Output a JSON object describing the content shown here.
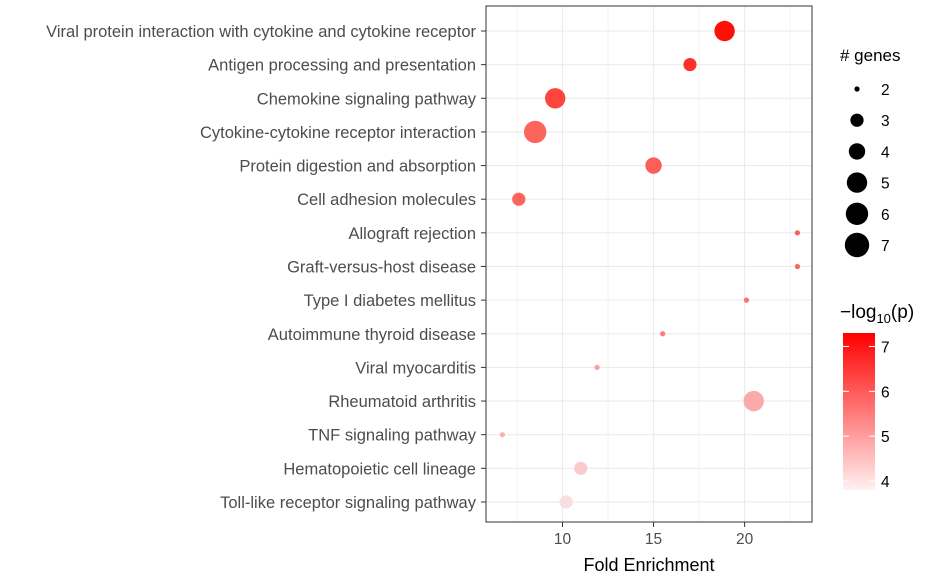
{
  "chart_data": {
    "type": "scatter",
    "title": "",
    "xlabel": "Fold Enrichment",
    "ylabel": "",
    "xlim": [
      5.8,
      23.7
    ],
    "x_ticks": [
      10,
      15,
      20
    ],
    "grid": true,
    "categories": [
      "Viral protein interaction with cytokine and cytokine receptor",
      "Antigen processing and presentation",
      "Chemokine signaling pathway",
      "Cytokine-cytokine receptor interaction",
      "Protein digestion and absorption",
      "Cell adhesion molecules",
      "Allograft rejection",
      "Graft-versus-host disease",
      "Type I diabetes mellitus",
      "Autoimmune thyroid disease",
      "Viral myocarditis",
      "Rheumatoid arthritis",
      "TNF signaling pathway",
      "Hematopoietic cell lineage",
      "Toll-like receptor signaling pathway"
    ],
    "points": [
      {
        "pathway": "Viral protein interaction with cytokine and cytokine receptor",
        "fold_enrichment": 18.9,
        "genes": 5,
        "neg_log10_p": 7.2
      },
      {
        "pathway": "Antigen processing and presentation",
        "fold_enrichment": 17.0,
        "genes": 3,
        "neg_log10_p": 6.7
      },
      {
        "pathway": "Chemokine signaling pathway",
        "fold_enrichment": 9.6,
        "genes": 5,
        "neg_log10_p": 6.4
      },
      {
        "pathway": "Cytokine-cytokine receptor interaction",
        "fold_enrichment": 8.5,
        "genes": 6,
        "neg_log10_p": 5.9
      },
      {
        "pathway": "Protein digestion and absorption",
        "fold_enrichment": 15.0,
        "genes": 4,
        "neg_log10_p": 6.0
      },
      {
        "pathway": "Cell adhesion molecules",
        "fold_enrichment": 7.6,
        "genes": 3,
        "neg_log10_p": 5.9
      },
      {
        "pathway": "Allograft rejection",
        "fold_enrichment": 22.9,
        "genes": 2,
        "neg_log10_p": 6.0
      },
      {
        "pathway": "Graft-versus-host disease",
        "fold_enrichment": 22.9,
        "genes": 2,
        "neg_log10_p": 5.9
      },
      {
        "pathway": "Type I diabetes mellitus",
        "fold_enrichment": 20.1,
        "genes": 2,
        "neg_log10_p": 5.7
      },
      {
        "pathway": "Autoimmune thyroid disease",
        "fold_enrichment": 15.5,
        "genes": 2,
        "neg_log10_p": 5.5
      },
      {
        "pathway": "Viral myocarditis",
        "fold_enrichment": 11.9,
        "genes": 2,
        "neg_log10_p": 5.0
      },
      {
        "pathway": "Rheumatoid arthritis",
        "fold_enrichment": 20.5,
        "genes": 5,
        "neg_log10_p": 4.8
      },
      {
        "pathway": "TNF signaling pathway",
        "fold_enrichment": 6.7,
        "genes": 2,
        "neg_log10_p": 4.7
      },
      {
        "pathway": "Hematopoietic cell lineage",
        "fold_enrichment": 11.0,
        "genes": 3,
        "neg_log10_p": 4.3
      },
      {
        "pathway": "Toll-like receptor signaling pathway",
        "fold_enrichment": 10.2,
        "genes": 3,
        "neg_log10_p": 4.0
      }
    ],
    "size_legend": {
      "title": "# genes",
      "values": [
        2,
        3,
        4,
        5,
        6,
        7
      ]
    },
    "color_legend": {
      "title_prefix": "−log",
      "title_subscript": "10",
      "title_suffix": "(p)",
      "range": [
        3.8,
        7.3
      ],
      "ticks": [
        4,
        5,
        6,
        7
      ],
      "low_color": "#fff0f0",
      "high_color": "#ff0000"
    },
    "legend_placement": "right",
    "colors": {
      "point_low": "#f8ecec",
      "point_high": "#ff0a00",
      "size_legend_dot": "#000000",
      "panel_border": "#333333",
      "grid": "#ebebeb"
    }
  }
}
